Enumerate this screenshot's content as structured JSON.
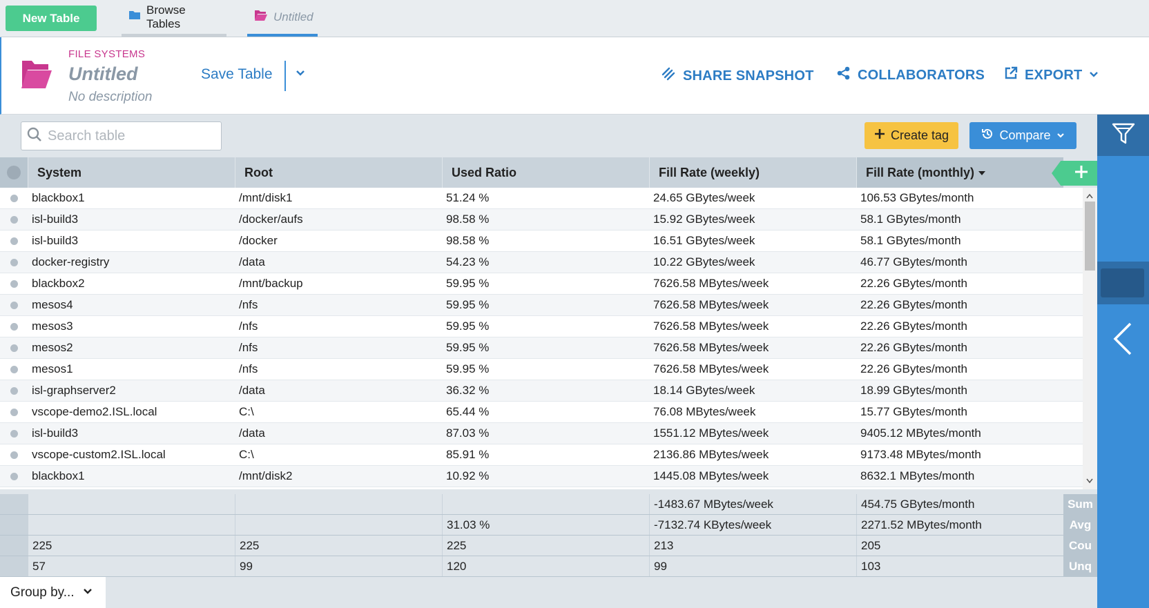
{
  "topbar": {
    "new_table": "New Table",
    "tabs": [
      {
        "label": "Browse Tables"
      },
      {
        "label": "Untitled"
      }
    ]
  },
  "header": {
    "category": "FILE SYSTEMS",
    "title": "Untitled",
    "description": "No description",
    "save_label": "Save Table",
    "share_label": "SHARE SNAPSHOT",
    "collab_label": "COLLABORATORS",
    "export_label": "EXPORT"
  },
  "toolbar": {
    "search_placeholder": "Search table",
    "create_tag": "Create tag",
    "compare": "Compare"
  },
  "table": {
    "columns": [
      "System",
      "Root",
      "Used Ratio",
      "Fill Rate (weekly)",
      "Fill Rate (monthly)"
    ],
    "rows": [
      [
        "blackbox1",
        "/mnt/disk1",
        "51.24 %",
        "24.65 GBytes/week",
        "106.53 GBytes/month"
      ],
      [
        "isl-build3",
        "/docker/aufs",
        "98.58 %",
        "15.92 GBytes/week",
        "58.1 GBytes/month"
      ],
      [
        "isl-build3",
        "/docker",
        "98.58 %",
        "16.51 GBytes/week",
        "58.1 GBytes/month"
      ],
      [
        "docker-registry",
        "/data",
        "54.23 %",
        "10.22 GBytes/week",
        "46.77 GBytes/month"
      ],
      [
        "blackbox2",
        "/mnt/backup",
        "59.95 %",
        "7626.58 MBytes/week",
        "22.26 GBytes/month"
      ],
      [
        "mesos4",
        "/nfs",
        "59.95 %",
        "7626.58 MBytes/week",
        "22.26 GBytes/month"
      ],
      [
        "mesos3",
        "/nfs",
        "59.95 %",
        "7626.58 MBytes/week",
        "22.26 GBytes/month"
      ],
      [
        "mesos2",
        "/nfs",
        "59.95 %",
        "7626.58 MBytes/week",
        "22.26 GBytes/month"
      ],
      [
        "mesos1",
        "/nfs",
        "59.95 %",
        "7626.58 MBytes/week",
        "22.26 GBytes/month"
      ],
      [
        "isl-graphserver2",
        "/data",
        "36.32 %",
        "18.14 GBytes/week",
        "18.99 GBytes/month"
      ],
      [
        "vscope-demo2.ISL.local",
        "C:\\",
        "65.44 %",
        "76.08 MBytes/week",
        "15.77 GBytes/month"
      ],
      [
        "isl-build3",
        "/data",
        "87.03 %",
        "1551.12 MBytes/week",
        "9405.12 MBytes/month"
      ],
      [
        "vscope-custom2.ISL.local",
        "C:\\",
        "85.91 %",
        "2136.86 MBytes/week",
        "9173.48 MBytes/month"
      ],
      [
        "blackbox1",
        "/mnt/disk2",
        "10.92 %",
        "1445.08 MBytes/week",
        "8632.1 MBytes/month"
      ]
    ]
  },
  "summary": [
    {
      "label": "Sum",
      "values": [
        "",
        "",
        "",
        "-1483.67 MBytes/week",
        "454.75 GBytes/month"
      ]
    },
    {
      "label": "Avg",
      "values": [
        "",
        "",
        "31.03 %",
        "-7132.74 KBytes/week",
        "2271.52 MBytes/month"
      ]
    },
    {
      "label": "Cou",
      "values": [
        "225",
        "225",
        "225",
        "213",
        "205"
      ]
    },
    {
      "label": "Unq",
      "values": [
        "57",
        "99",
        "120",
        "99",
        "103"
      ]
    }
  ],
  "footer": {
    "group_by": "Group by..."
  }
}
